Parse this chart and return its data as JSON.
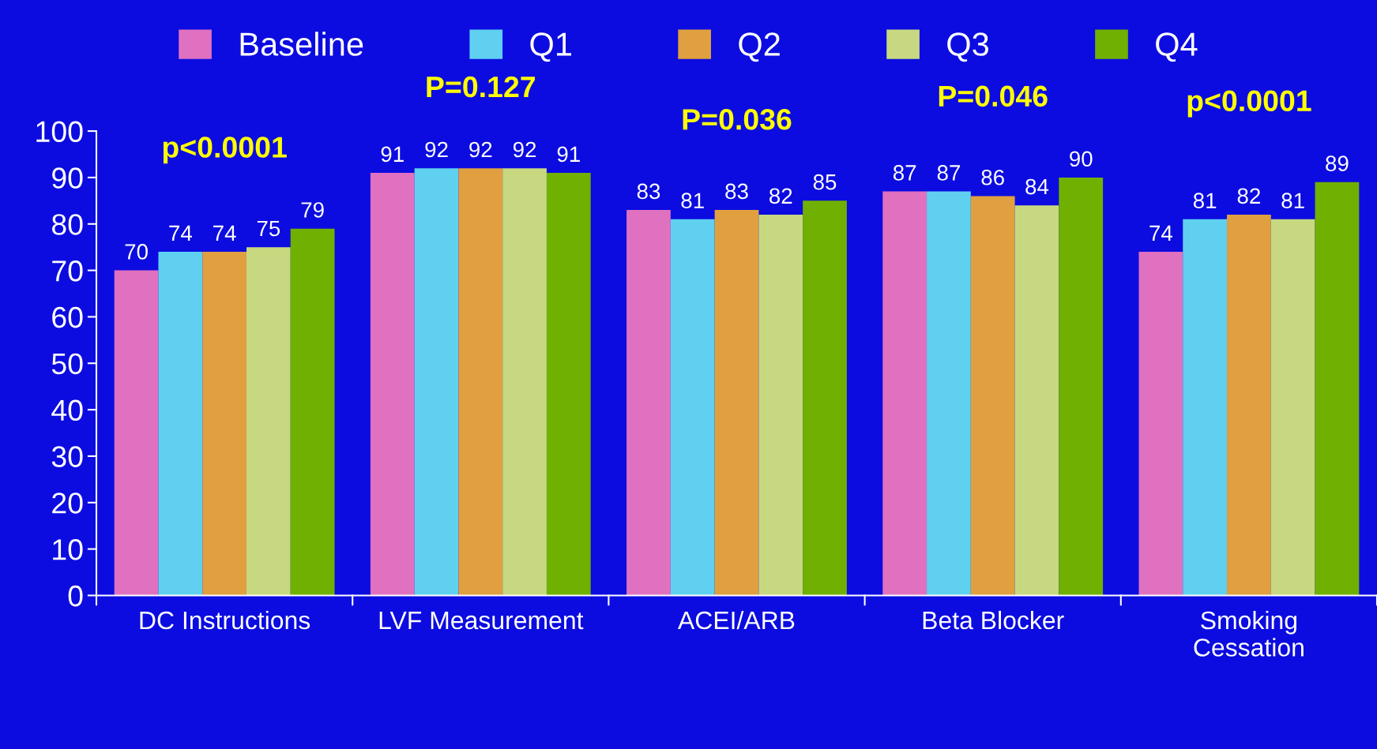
{
  "chart_data": {
    "type": "bar",
    "categories": [
      "DC Instructions",
      "LVF Measurement",
      "ACEI/ARB",
      "Beta Blocker",
      "Smoking Cessation"
    ],
    "series": [
      {
        "name": "Baseline",
        "color": "#e070c0",
        "values": [
          70,
          91,
          83,
          87,
          74
        ]
      },
      {
        "name": "Q1",
        "color": "#60d0f0",
        "values": [
          74,
          92,
          81,
          87,
          81
        ]
      },
      {
        "name": "Q2",
        "color": "#e0a040",
        "values": [
          74,
          92,
          83,
          86,
          82
        ]
      },
      {
        "name": "Q3",
        "color": "#c8d880",
        "values": [
          75,
          92,
          82,
          84,
          81
        ]
      },
      {
        "name": "Q4",
        "color": "#70b000",
        "values": [
          79,
          91,
          85,
          90,
          89
        ]
      }
    ],
    "ylim": [
      0,
      100
    ],
    "yticks": [
      0,
      10,
      20,
      30,
      40,
      50,
      60,
      70,
      80,
      90,
      100
    ],
    "grid": false,
    "legend": "top",
    "data_labels": true,
    "annotations": [
      "p<0.0001",
      "P=0.127",
      "P=0.036",
      "P=0.046",
      "p<0.0001"
    ]
  }
}
